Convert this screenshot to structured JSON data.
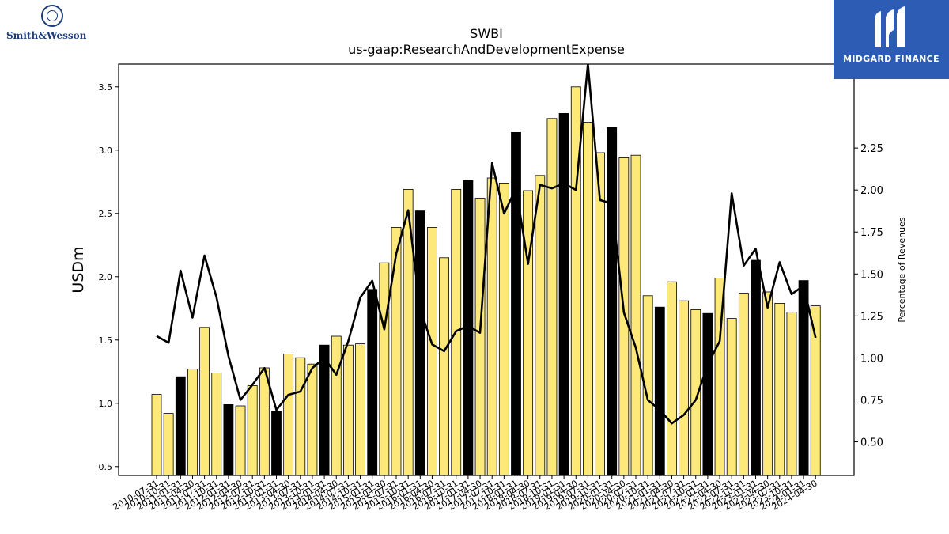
{
  "logos": {
    "left_wordmark": "Smith&Wesson",
    "right_brand": "MIDGARD FINANCE"
  },
  "chart_data": {
    "type": "bar",
    "title": "SWBI",
    "subtitle": "us-gaap:ResearchAndDevelopmentExpense",
    "ylabel": "USDm",
    "y2label": "Percentage of Revenues",
    "ylim": [
      0.43,
      3.68
    ],
    "y2lim": [
      0.3,
      2.75
    ],
    "yticks": [
      0.5,
      1.0,
      1.5,
      2.0,
      2.5,
      3.0,
      3.5
    ],
    "y2ticks": [
      0.5,
      0.75,
      1.0,
      1.25,
      1.5,
      1.75,
      2.0,
      2.25
    ],
    "categories": [
      "2010-07-31",
      "2010-10-31",
      "2011-01-31",
      "2011-04-30",
      "2011-07-31",
      "2011-10-31",
      "2012-01-31",
      "2012-04-30",
      "2012-07-31",
      "2012-10-31",
      "2013-01-31",
      "2013-04-30",
      "2013-07-31",
      "2013-10-31",
      "2014-01-31",
      "2014-04-30",
      "2014-07-31",
      "2014-10-31",
      "2015-01-31",
      "2015-04-30",
      "2015-07-31",
      "2015-10-31",
      "2016-01-31",
      "2016-04-30",
      "2016-07-31",
      "2016-10-31",
      "2017-01-31",
      "2017-04-30",
      "2017-07-31",
      "2017-10-31",
      "2018-01-31",
      "2018-04-30",
      "2018-07-31",
      "2018-10-31",
      "2019-01-31",
      "2019-04-30",
      "2019-07-31",
      "2019-10-31",
      "2020-01-31",
      "2020-04-30",
      "2020-07-31",
      "2020-10-31",
      "2021-01-31",
      "2021-04-30",
      "2021-07-31",
      "2021-10-31",
      "2022-01-31",
      "2022-04-30",
      "2022-07-31",
      "2022-10-31",
      "2023-01-31",
      "2023-04-30",
      "2023-07-31",
      "2023-10-31",
      "2024-01-31",
      "2024-04-30"
    ],
    "series": [
      {
        "values": [
          1.07,
          0.92,
          1.21,
          1.27,
          1.6,
          1.24,
          0.99,
          0.98,
          1.14,
          1.28,
          0.94,
          1.39,
          1.36,
          1.31,
          1.46,
          1.53,
          1.46,
          1.47,
          1.9,
          2.11,
          2.39,
          2.69,
          2.52,
          2.39,
          2.15,
          2.69,
          2.76,
          2.62,
          2.78,
          2.74,
          3.14,
          2.68,
          2.8,
          3.25,
          3.29,
          3.5,
          3.22,
          2.98,
          3.18,
          2.94,
          2.96,
          1.85,
          1.76,
          1.96,
          1.81,
          1.74,
          1.71,
          1.99,
          1.67,
          1.87,
          2.13,
          1.88,
          1.79,
          1.72,
          1.97,
          1.77
        ],
        "colors": [
          "#fce97a",
          "#fce97a",
          "#000000",
          "#fce97a",
          "#fce97a",
          "#fce97a",
          "#000000",
          "#fce97a",
          "#fce97a",
          "#fce97a",
          "#000000",
          "#fce97a",
          "#fce97a",
          "#fce97a",
          "#000000",
          "#fce97a",
          "#fce97a",
          "#fce97a",
          "#000000",
          "#fce97a",
          "#fce97a",
          "#fce97a",
          "#000000",
          "#fce97a",
          "#fce97a",
          "#fce97a",
          "#000000",
          "#fce97a",
          "#fce97a",
          "#fce97a",
          "#000000",
          "#fce97a",
          "#fce97a",
          "#fce97a",
          "#000000",
          "#fce97a",
          "#fce97a",
          "#fce97a",
          "#000000",
          "#fce97a",
          "#fce97a",
          "#fce97a",
          "#000000",
          "#fce97a",
          "#fce97a",
          "#fce97a",
          "#000000",
          "#fce97a",
          "#fce97a",
          "#fce97a",
          "#000000",
          "#fce97a",
          "#fce97a",
          "#fce97a",
          "#000000",
          "#fce97a"
        ]
      },
      {
        "type": "line",
        "axis": "right",
        "color": "#000000",
        "values": [
          1.13,
          1.09,
          1.52,
          1.24,
          1.61,
          1.36,
          1.01,
          0.75,
          0.84,
          0.94,
          0.69,
          0.78,
          0.8,
          0.94,
          1.0,
          0.9,
          1.1,
          1.36,
          1.46,
          1.17,
          1.62,
          1.88,
          1.29,
          1.08,
          1.04,
          1.16,
          1.19,
          1.15,
          2.16,
          1.86,
          2.01,
          1.56,
          2.03,
          2.01,
          2.04,
          2.0,
          2.75,
          1.94,
          1.92,
          1.27,
          1.06,
          0.75,
          0.69,
          0.61,
          0.66,
          0.75,
          0.96,
          1.1,
          1.98,
          1.55,
          1.65,
          1.3,
          1.57,
          1.38,
          1.43,
          1.12
        ]
      }
    ]
  }
}
